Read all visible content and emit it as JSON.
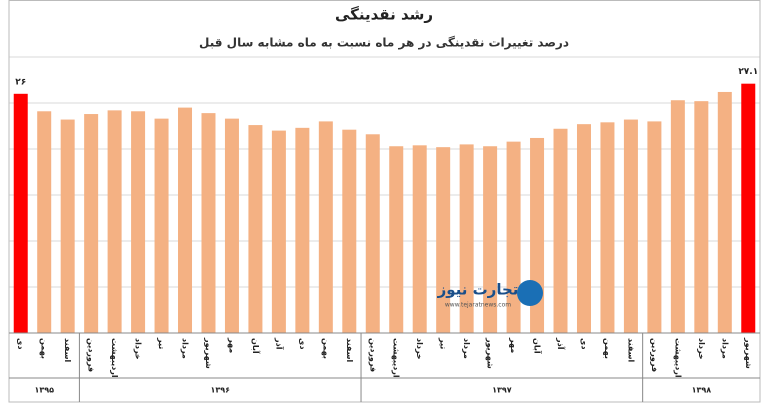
{
  "chart_data": {
    "type": "bar",
    "title": "رشد نقدینگی",
    "subtitle": "درصد تغییرات نقدینگی در هر ماه نسبت به ماه مشابه سال قبل",
    "categories": [
      "دی",
      "بهمن",
      "اسفند",
      "فروردین",
      "اردیبهشت",
      "خرداد",
      "تیر",
      "مرداد",
      "شهریور",
      "مهر",
      "آبان",
      "آذر",
      "دی",
      "بهمن",
      "اسفند",
      "فروردین",
      "اردیبهشت",
      "خرداد",
      "تیر",
      "مرداد",
      "شهریور",
      "مهر",
      "آبان",
      "آذر",
      "دی",
      "بهمن",
      "اسفند",
      "فروردین",
      "اردیبهشت",
      "خرداد",
      "مرداد",
      "شهریور"
    ],
    "category_groups": [
      "۱۳۹۵",
      "۱۳۹۵",
      "۱۳۹۵",
      "۱۳۹۶",
      "۱۳۹۶",
      "۱۳۹۶",
      "۱۳۹۶",
      "۱۳۹۶",
      "۱۳۹۶",
      "۱۳۹۶",
      "۱۳۹۶",
      "۱۳۹۶",
      "۱۳۹۶",
      "۱۳۹۶",
      "۱۳۹۶",
      "۱۳۹۷",
      "۱۳۹۷",
      "۱۳۹۷",
      "۱۳۹۷",
      "۱۳۹۷",
      "۱۳۹۷",
      "۱۳۹۷",
      "۱۳۹۷",
      "۱۳۹۷",
      "۱۳۹۷",
      "۱۳۹۷",
      "۱۳۹۷",
      "۱۳۹۸",
      "۱۳۹۸",
      "۱۳۹۸",
      "۱۳۹۸",
      "۱۳۹۸"
    ],
    "values": [
      26,
      24.1,
      23.2,
      23.8,
      24.2,
      24.1,
      23.3,
      24.5,
      23.9,
      23.3,
      22.6,
      22.0,
      22.3,
      23.0,
      22.1,
      21.6,
      20.3,
      20.4,
      20.2,
      20.5,
      20.3,
      20.8,
      21.2,
      22.2,
      22.7,
      22.9,
      23.2,
      23.0,
      25.3,
      25.2,
      26.2,
      27.1
    ],
    "value_labels": [
      "۲۶",
      null,
      null,
      null,
      null,
      null,
      null,
      null,
      null,
      null,
      null,
      null,
      null,
      null,
      null,
      null,
      null,
      null,
      null,
      null,
      null,
      null,
      null,
      null,
      null,
      null,
      null,
      null,
      null,
      null,
      null,
      "۲۷.۱"
    ],
    "colors": [
      "#ff0000",
      "#f4b183",
      "#f4b183",
      "#f4b183",
      "#f4b183",
      "#f4b183",
      "#f4b183",
      "#f4b183",
      "#f4b183",
      "#f4b183",
      "#f4b183",
      "#f4b183",
      "#f4b183",
      "#f4b183",
      "#f4b183",
      "#f4b183",
      "#f4b183",
      "#f4b183",
      "#f4b183",
      "#f4b183",
      "#f4b183",
      "#f4b183",
      "#f4b183",
      "#f4b183",
      "#f4b183",
      "#f4b183",
      "#f4b183",
      "#f4b183",
      "#f4b183",
      "#f4b183",
      "#f4b183",
      "#ff0000"
    ],
    "ylim": [
      0,
      30
    ],
    "yticks": [
      0,
      5,
      10,
      15,
      20,
      25,
      30
    ],
    "grid": true,
    "watermark": {
      "name": "تجارت نیوز",
      "url": "www.tejaratnews.com"
    }
  }
}
